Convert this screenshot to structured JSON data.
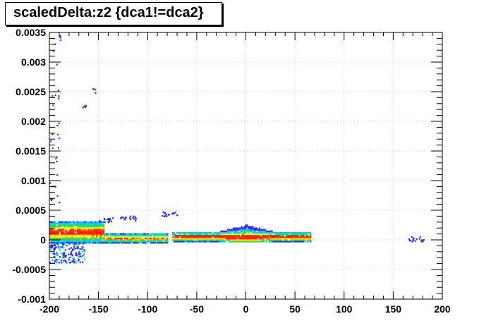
{
  "chart_data": {
    "type": "heatmap",
    "title": "scaledDelta:z2 {dca1!=dca2}",
    "xlabel": "",
    "ylabel": "",
    "xlim": [
      -200,
      200
    ],
    "ylim": [
      -0.001,
      0.0035
    ],
    "x_ticks": [
      -200,
      -150,
      -100,
      -50,
      0,
      50,
      100,
      150,
      200
    ],
    "x_tick_labels": [
      "-200",
      "-150",
      "-100",
      "-50",
      "0",
      "50",
      "100",
      "150",
      "200"
    ],
    "y_ticks": [
      -0.001,
      -0.0005,
      0,
      0.0005,
      0.001,
      0.0015,
      0.002,
      0.0025,
      0.003,
      0.0035
    ],
    "y_tick_labels": [
      "-0.001",
      "-0.0005",
      "0",
      "0.0005",
      "0.001",
      "0.0015",
      "0.002",
      "0.0025",
      "0.003",
      "0.0035"
    ],
    "grid": true,
    "colors": {
      "low": "#2b2bff",
      "mid_low": "#00c8ff",
      "mid": "#22dd66",
      "mid_high": "#ffee00",
      "high": "#ff2200"
    },
    "bands": [
      {
        "region": "x from -200 to -145",
        "y_center": 0.00012,
        "half_width": 0.0002,
        "peak_level": "high"
      },
      {
        "region": "x from -145 to -80",
        "y_center": 2e-05,
        "half_width": 8e-05,
        "peak_level": "mid_high"
      },
      {
        "region": "x from -75 to 65",
        "y_center": 4e-05,
        "half_width": 8e-05,
        "peak_level": "high"
      }
    ],
    "clusters": [
      {
        "x": -142,
        "y": 0.00032,
        "level": "low"
      },
      {
        "x": -120,
        "y": 0.00035,
        "level": "low"
      },
      {
        "x": -78,
        "y": 0.00042,
        "level": "low"
      },
      {
        "x": -190,
        "y": 0.0034,
        "level": "low"
      },
      {
        "x": -155,
        "y": 0.0025,
        "level": "low"
      },
      {
        "x": -165,
        "y": 0.00225,
        "level": "low"
      },
      {
        "x": 173,
        "y": 0.0,
        "level": "low"
      }
    ]
  }
}
